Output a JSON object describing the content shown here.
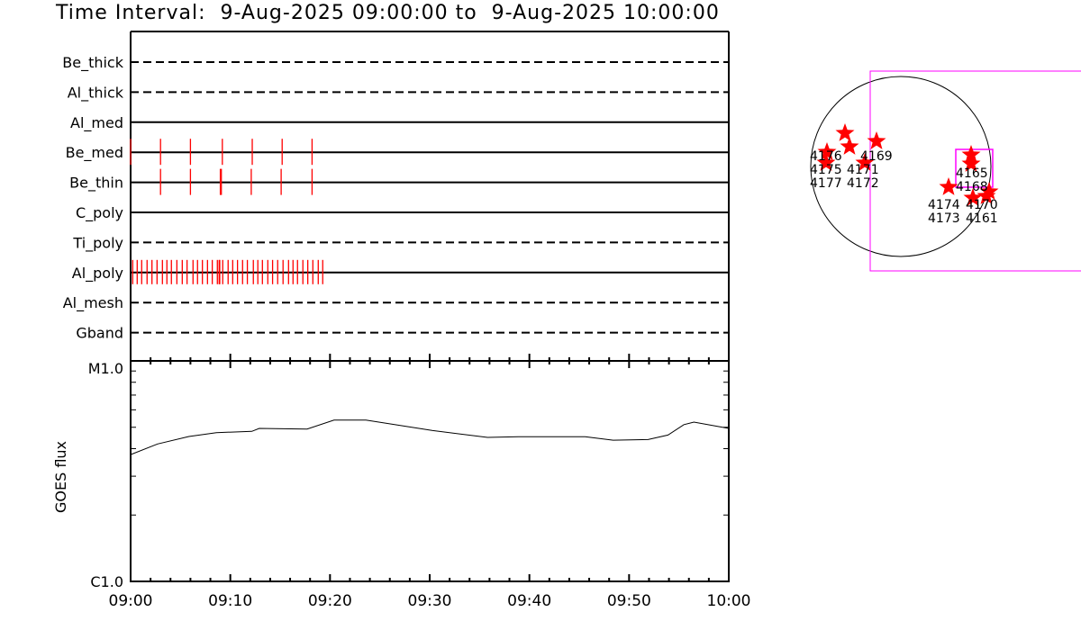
{
  "title": "Time Interval:  9-Aug-2025 09:00:00 to  9-Aug-2025 10:00:00",
  "colors": {
    "exposure": "#ff0000",
    "fov": "#ff00ff",
    "axis": "#000000",
    "star": "#ff0000"
  },
  "chart_data": [
    {
      "type": "timeline",
      "xlim": [
        "09:00",
        "10:00"
      ],
      "rows": [
        {
          "label": "Be_thick",
          "line": "dashed",
          "exposures_min": []
        },
        {
          "label": "Al_thick",
          "line": "dashed",
          "exposures_min": []
        },
        {
          "label": "Al_med",
          "line": "solid",
          "exposures_min": []
        },
        {
          "label": "Be_med",
          "line": "solid",
          "exposures_min": [
            0.0,
            3.0,
            6.0,
            9.2,
            12.2,
            15.2,
            18.2
          ]
        },
        {
          "label": "Be_thin",
          "line": "solid",
          "exposures_min": [
            3.0,
            6.0,
            9.0,
            9.1,
            12.1,
            15.1,
            18.2
          ]
        },
        {
          "label": "C_poly",
          "line": "solid",
          "exposures_min": []
        },
        {
          "label": "Ti_poly",
          "line": "dashed",
          "exposures_min": []
        },
        {
          "label": "Al_poly",
          "line": "solid",
          "exposures_min": [
            0.21,
            0.66,
            1.11,
            1.65,
            2.14,
            2.65,
            3.19,
            3.64,
            4.09,
            4.64,
            5.18,
            5.66,
            6.26,
            6.71,
            7.2,
            7.71,
            8.19,
            8.7,
            8.88,
            8.94,
            9.24,
            9.78,
            10.24,
            10.72,
            11.23,
            11.71,
            12.31,
            12.76,
            13.22,
            13.76,
            14.24,
            14.75,
            15.29,
            15.84,
            16.29,
            16.74,
            17.28,
            17.77,
            18.28,
            18.82,
            19.27
          ]
        },
        {
          "label": "Al_mesh",
          "line": "dashed",
          "exposures_min": []
        },
        {
          "label": "Gband",
          "line": "dashed",
          "exposures_min": []
        }
      ]
    },
    {
      "type": "line",
      "ylabel": "GOES flux",
      "yscale": "log",
      "ylim": [
        1e-06,
        1e-05
      ],
      "ytick_labels": [
        "C1.0",
        "M1.0"
      ],
      "xtick_labels": [
        "09:00",
        "09:10",
        "09:20",
        "09:30",
        "09:40",
        "09:50",
        "10:00"
      ],
      "x_min": [
        0,
        2.7,
        5.85,
        8.6,
        12.15,
        12.9,
        17.7,
        20.4,
        23.6,
        30.3,
        35.8,
        38.9,
        45.6,
        48.4,
        51.9,
        53.9,
        55.5,
        56.5,
        60
      ],
      "y": [
        3.76e-06,
        4.2e-06,
        4.54e-06,
        4.73e-06,
        4.79e-06,
        4.94e-06,
        4.91e-06,
        5.39e-06,
        5.39e-06,
        4.83e-06,
        4.5e-06,
        4.53e-06,
        4.53e-06,
        4.37e-06,
        4.4e-06,
        4.61e-06,
        5.14e-06,
        5.28e-06,
        4.94e-06
      ]
    }
  ],
  "disk": {
    "regions": [
      "4176",
      "4169",
      "4171",
      "4175",
      "4177",
      "4172",
      "4165",
      "4168",
      "4174",
      "4170",
      "4161",
      "4173"
    ]
  }
}
